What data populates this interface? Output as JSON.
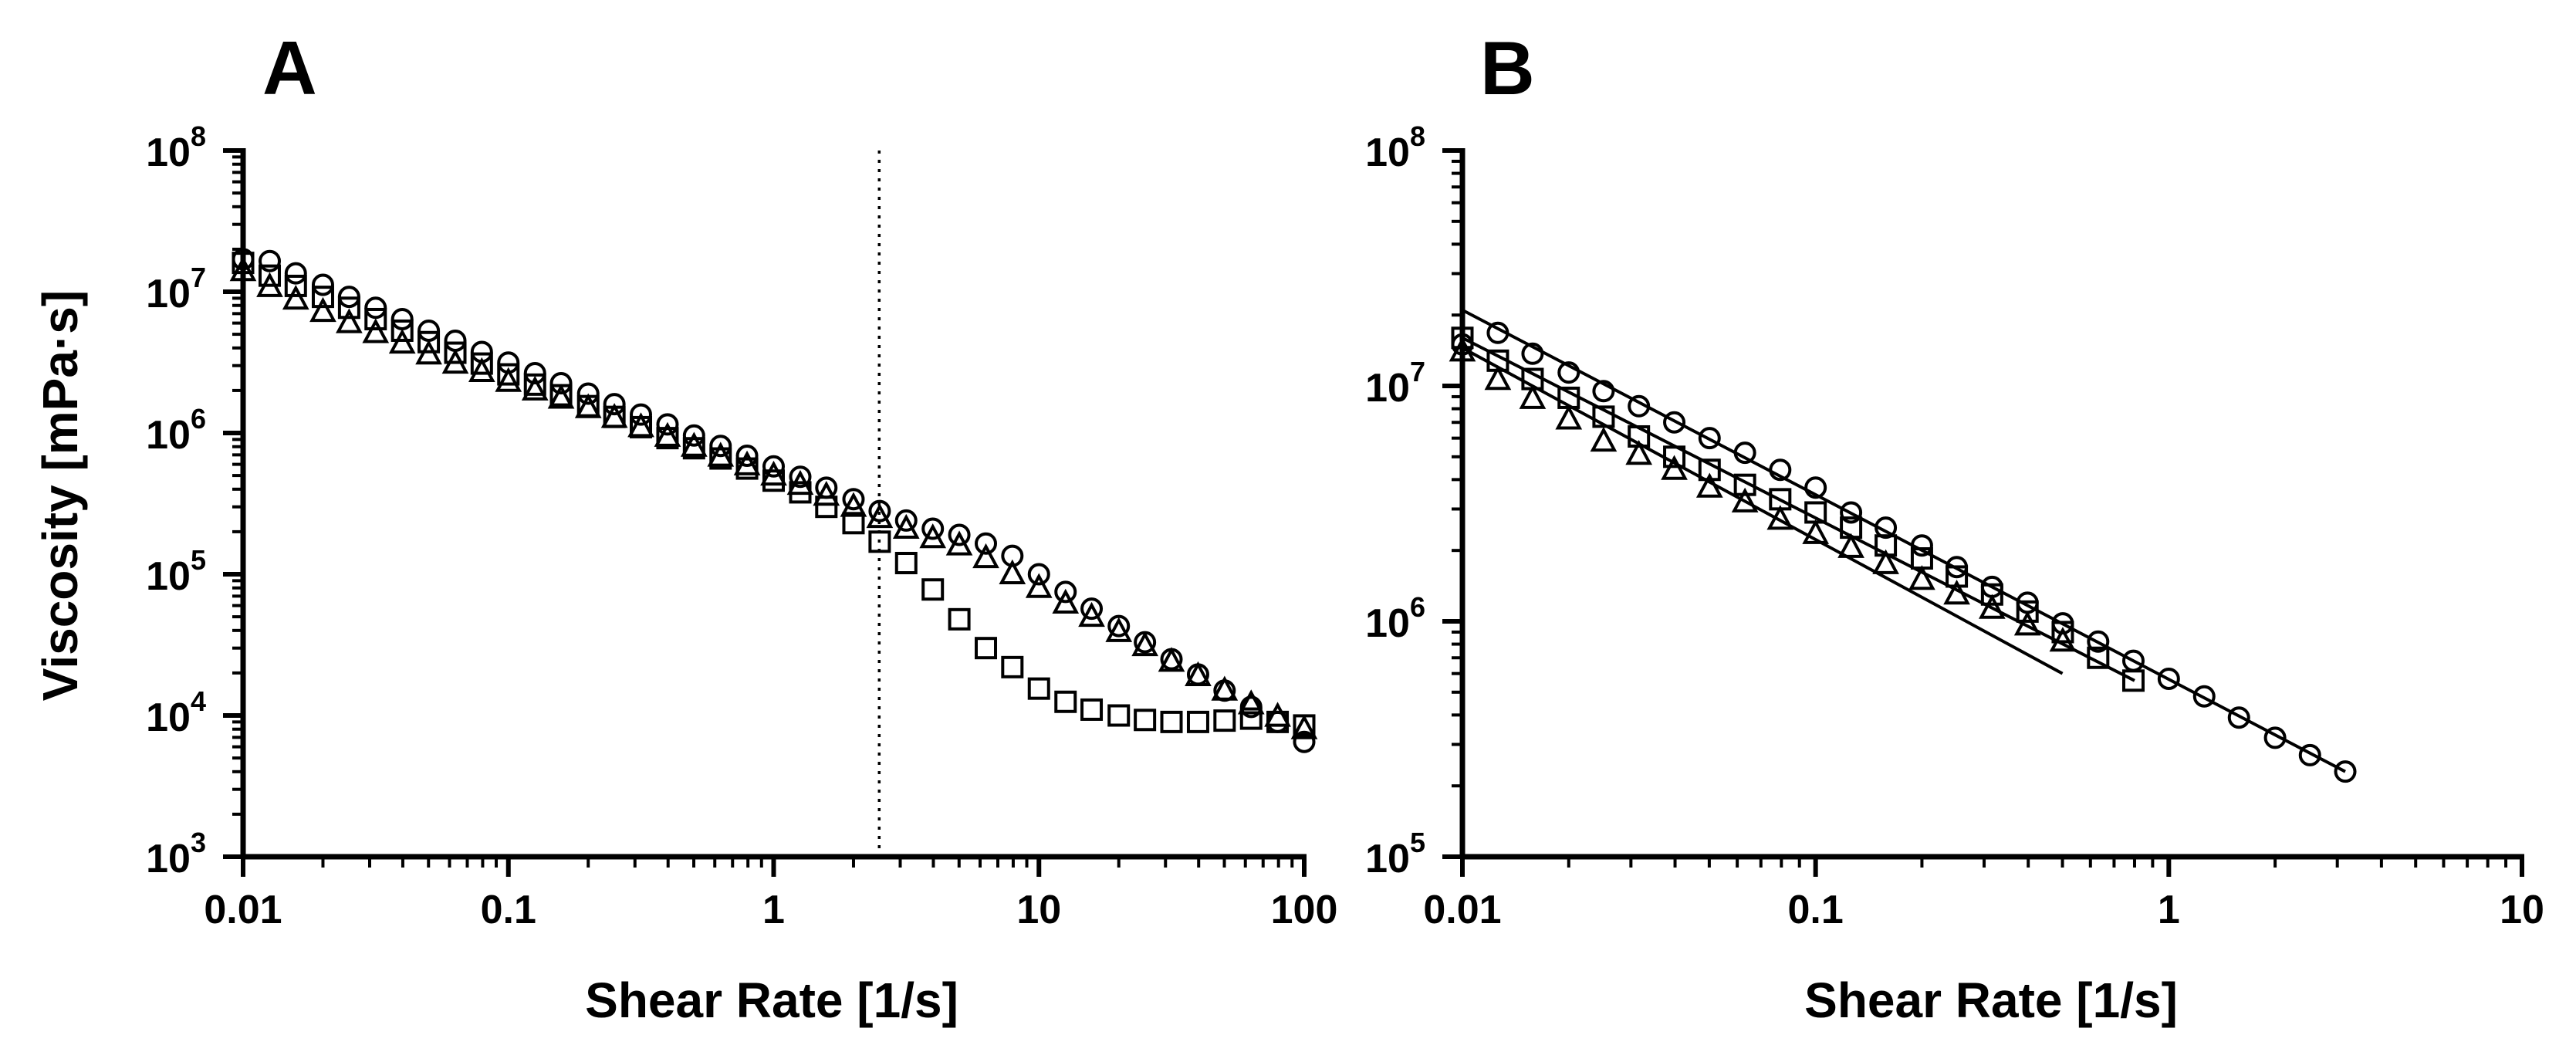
{
  "chart_data": [
    {
      "panel": "A",
      "type": "scatter",
      "title": "A",
      "xlabel": "Shear Rate [1/s]",
      "ylabel": "Viscosity [mPa·s]",
      "xscale": "log",
      "yscale": "log",
      "xlim": [
        0.01,
        100
      ],
      "ylim": [
        1000,
        100000000
      ],
      "x_ticks": [
        "0.01",
        "0.1",
        "1",
        "10",
        "100"
      ],
      "y_ticks": [
        {
          "base": "10",
          "exp": "3"
        },
        {
          "base": "10",
          "exp": "4"
        },
        {
          "base": "10",
          "exp": "5"
        },
        {
          "base": "10",
          "exp": "6"
        },
        {
          "base": "10",
          "exp": "7"
        },
        {
          "base": "10",
          "exp": "8"
        }
      ],
      "vline_x": 2.5,
      "series": [
        {
          "name": "circle",
          "marker": "circle",
          "points": [
            [
              0.01,
              17000000
            ],
            [
              0.0126,
              16500000
            ],
            [
              0.0158,
              13500000
            ],
            [
              0.02,
              11200000
            ],
            [
              0.0251,
              9200000
            ],
            [
              0.0316,
              7700000
            ],
            [
              0.0398,
              6400000
            ],
            [
              0.0501,
              5300000
            ],
            [
              0.0631,
              4500000
            ],
            [
              0.0794,
              3750000
            ],
            [
              0.1,
              3150000
            ],
            [
              0.126,
              2650000
            ],
            [
              0.158,
              2250000
            ],
            [
              0.2,
              1900000
            ],
            [
              0.251,
              1600000
            ],
            [
              0.316,
              1350000
            ],
            [
              0.398,
              1150000
            ],
            [
              0.501,
              960000
            ],
            [
              0.631,
              810000
            ],
            [
              0.794,
              690000
            ],
            [
              1,
              580000
            ],
            [
              1.26,
              490000
            ],
            [
              1.58,
              410000
            ],
            [
              2,
              340000
            ],
            [
              2.51,
              280000
            ],
            [
              3.16,
              240000
            ],
            [
              3.98,
              210000
            ],
            [
              5.01,
              190000
            ],
            [
              6.31,
              165000
            ],
            [
              7.94,
              135000
            ],
            [
              10,
              100000
            ],
            [
              12.6,
              75000
            ],
            [
              15.8,
              57000
            ],
            [
              20,
              43000
            ],
            [
              25.1,
              33000
            ],
            [
              31.6,
              25000
            ],
            [
              39.8,
              19500
            ],
            [
              50.1,
              15000
            ],
            [
              63.1,
              11500
            ],
            [
              79.4,
              9000
            ],
            [
              100,
              6500
            ]
          ]
        },
        {
          "name": "square",
          "marker": "square",
          "points": [
            [
              0.01,
              16000000
            ],
            [
              0.0126,
              13000000
            ],
            [
              0.0158,
              11000000
            ],
            [
              0.02,
              9200000
            ],
            [
              0.0251,
              7700000
            ],
            [
              0.0316,
              6400000
            ],
            [
              0.0398,
              5300000
            ],
            [
              0.0501,
              4400000
            ],
            [
              0.0631,
              3700000
            ],
            [
              0.0794,
              3100000
            ],
            [
              0.1,
              2600000
            ],
            [
              0.126,
              2200000
            ],
            [
              0.158,
              1850000
            ],
            [
              0.2,
              1550000
            ],
            [
              0.251,
              1300000
            ],
            [
              0.316,
              1100000
            ],
            [
              0.398,
              920000
            ],
            [
              0.501,
              780000
            ],
            [
              0.631,
              660000
            ],
            [
              0.794,
              560000
            ],
            [
              1,
              460000
            ],
            [
              1.26,
              380000
            ],
            [
              1.58,
              300000
            ],
            [
              2,
              230000
            ],
            [
              2.51,
              170000
            ],
            [
              3.16,
              120000
            ],
            [
              3.98,
              78000
            ],
            [
              5.01,
              48000
            ],
            [
              6.31,
              30000
            ],
            [
              7.94,
              22000
            ],
            [
              10,
              15500
            ],
            [
              12.6,
              12500
            ],
            [
              15.8,
              11000
            ],
            [
              20,
              10000
            ],
            [
              25.1,
              9300
            ],
            [
              31.6,
              9000
            ],
            [
              39.8,
              9000
            ],
            [
              50.1,
              9200
            ],
            [
              63.1,
              9500
            ],
            [
              79.4,
              9000
            ],
            [
              100,
              8500
            ]
          ]
        },
        {
          "name": "triangle",
          "marker": "triangle",
          "points": [
            [
              0.01,
              14000000
            ],
            [
              0.0126,
              10800000
            ],
            [
              0.0158,
              8800000
            ],
            [
              0.02,
              7200000
            ],
            [
              0.0251,
              6000000
            ],
            [
              0.0316,
              5100000
            ],
            [
              0.0398,
              4300000
            ],
            [
              0.0501,
              3600000
            ],
            [
              0.0631,
              3100000
            ],
            [
              0.0794,
              2700000
            ],
            [
              0.1,
              2300000
            ],
            [
              0.126,
              2000000
            ],
            [
              0.158,
              1750000
            ],
            [
              0.2,
              1500000
            ],
            [
              0.251,
              1280000
            ],
            [
              0.316,
              1100000
            ],
            [
              0.398,
              940000
            ],
            [
              0.501,
              800000
            ],
            [
              0.631,
              680000
            ],
            [
              0.794,
              590000
            ],
            [
              1,
              500000
            ],
            [
              1.26,
              430000
            ],
            [
              1.58,
              360000
            ],
            [
              2,
              300000
            ],
            [
              2.51,
              250000
            ],
            [
              3.16,
              210000
            ],
            [
              3.98,
              180000
            ],
            [
              5.01,
              160000
            ],
            [
              6.31,
              130000
            ],
            [
              7.94,
              100000
            ],
            [
              10,
              80000
            ],
            [
              12.6,
              62000
            ],
            [
              15.8,
              50000
            ],
            [
              20,
              39000
            ],
            [
              25.1,
              31000
            ],
            [
              31.6,
              24000
            ],
            [
              39.8,
              19000
            ],
            [
              50.1,
              15000
            ],
            [
              63.1,
              12000
            ],
            [
              79.4,
              9800
            ],
            [
              100,
              8000
            ]
          ]
        }
      ]
    },
    {
      "panel": "B",
      "type": "scatter",
      "title": "B",
      "xlabel": "Shear Rate [1/s]",
      "ylabel": "",
      "xscale": "log",
      "yscale": "log",
      "xlim": [
        0.01,
        10
      ],
      "ylim": [
        100000,
        100000000
      ],
      "x_ticks": [
        "0.01",
        "0.1",
        "1",
        "10"
      ],
      "y_ticks": [
        {
          "base": "10",
          "exp": "5"
        },
        {
          "base": "10",
          "exp": "6"
        },
        {
          "base": "10",
          "exp": "7"
        },
        {
          "base": "10",
          "exp": "8"
        }
      ],
      "series": [
        {
          "name": "circle",
          "marker": "circle",
          "points": [
            [
              0.01,
              15000000
            ],
            [
              0.0126,
              16800000
            ],
            [
              0.0158,
              13700000
            ],
            [
              0.02,
              11400000
            ],
            [
              0.0251,
              9500000
            ],
            [
              0.0316,
              8200000
            ],
            [
              0.0398,
              7000000
            ],
            [
              0.0501,
              6000000
            ],
            [
              0.0631,
              5200000
            ],
            [
              0.0794,
              4400000
            ],
            [
              0.1,
              3700000
            ],
            [
              0.126,
              2900000
            ],
            [
              0.158,
              2500000
            ],
            [
              0.2,
              2100000
            ],
            [
              0.251,
              1700000
            ],
            [
              0.316,
              1400000
            ],
            [
              0.398,
              1200000
            ],
            [
              0.501,
              980000
            ],
            [
              0.631,
              820000
            ],
            [
              0.794,
              680000
            ],
            [
              1,
              570000
            ],
            [
              1.26,
              480000
            ],
            [
              1.58,
              390000
            ],
            [
              2,
              320000
            ],
            [
              2.51,
              270000
            ],
            [
              3.16,
              230000
            ]
          ]
        },
        {
          "name": "square",
          "marker": "square",
          "points": [
            [
              0.01,
              16000000
            ],
            [
              0.0126,
              12800000
            ],
            [
              0.0158,
              10700000
            ],
            [
              0.02,
              8900000
            ],
            [
              0.0251,
              7400000
            ],
            [
              0.0316,
              6100000
            ],
            [
              0.0398,
              5000000
            ],
            [
              0.0501,
              4400000
            ],
            [
              0.0631,
              3800000
            ],
            [
              0.0794,
              3300000
            ],
            [
              0.1,
              2900000
            ],
            [
              0.126,
              2500000
            ],
            [
              0.158,
              2100000
            ],
            [
              0.2,
              1850000
            ],
            [
              0.251,
              1550000
            ],
            [
              0.316,
              1300000
            ],
            [
              0.398,
              1100000
            ],
            [
              0.501,
              900000
            ],
            [
              0.631,
              700000
            ],
            [
              0.794,
              560000
            ]
          ]
        },
        {
          "name": "triangle",
          "marker": "triangle",
          "points": [
            [
              0.01,
              14000000
            ],
            [
              0.0126,
              10600000
            ],
            [
              0.0158,
              8800000
            ],
            [
              0.02,
              7200000
            ],
            [
              0.0251,
              5800000
            ],
            [
              0.0316,
              5100000
            ],
            [
              0.0398,
              4400000
            ],
            [
              0.0501,
              3700000
            ],
            [
              0.0631,
              3200000
            ],
            [
              0.0794,
              2700000
            ],
            [
              0.1,
              2350000
            ],
            [
              0.126,
              2050000
            ],
            [
              0.158,
              1750000
            ],
            [
              0.2,
              1500000
            ],
            [
              0.251,
              1300000
            ],
            [
              0.316,
              1130000
            ],
            [
              0.398,
              960000
            ],
            [
              0.501,
              820000
            ]
          ]
        }
      ],
      "fit_lines": [
        {
          "name": "fit-circle",
          "x": [
            0.01,
            3.16
          ],
          "y": [
            21000000,
            230000
          ]
        },
        {
          "name": "fit-square",
          "x": [
            0.01,
            0.8
          ],
          "y": [
            16000000,
            560000
          ]
        },
        {
          "name": "fit-triangle",
          "x": [
            0.01,
            0.5
          ],
          "y": [
            14500000,
            600000
          ]
        }
      ]
    }
  ]
}
